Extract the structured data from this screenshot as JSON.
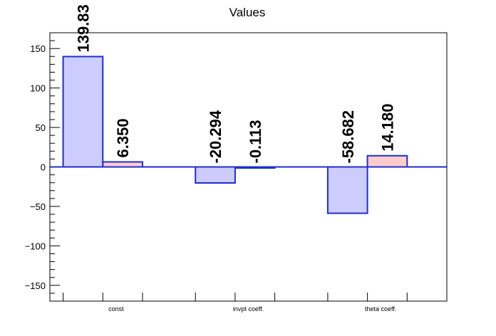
{
  "chart_data": {
    "type": "bar",
    "title": "Values",
    "categories": [
      "const",
      "invpt coeff.",
      "theta coeff."
    ],
    "series": [
      {
        "values": [
          139.83,
          -20.294,
          -58.682
        ],
        "labels": [
          "139.83",
          "-20.294",
          "-58.682"
        ],
        "fill": "#ccccff",
        "stroke": "#1f2fcc"
      },
      {
        "values": [
          6.35,
          -0.113,
          14.18
        ],
        "labels": [
          "6.350",
          "-0.113",
          "14.180"
        ],
        "fill": "#ffcccc",
        "stroke": "#1f2fcc"
      }
    ],
    "ylim": [
      -170,
      170
    ],
    "yticks": [
      -150,
      -100,
      -50,
      0,
      50,
      100,
      150
    ],
    "ytick_labels": [
      "−150",
      "−100",
      "−50",
      "0",
      "50",
      "100",
      "150"
    ],
    "grid": false,
    "legend": false,
    "zero_line_color": "#1f2fcc"
  }
}
